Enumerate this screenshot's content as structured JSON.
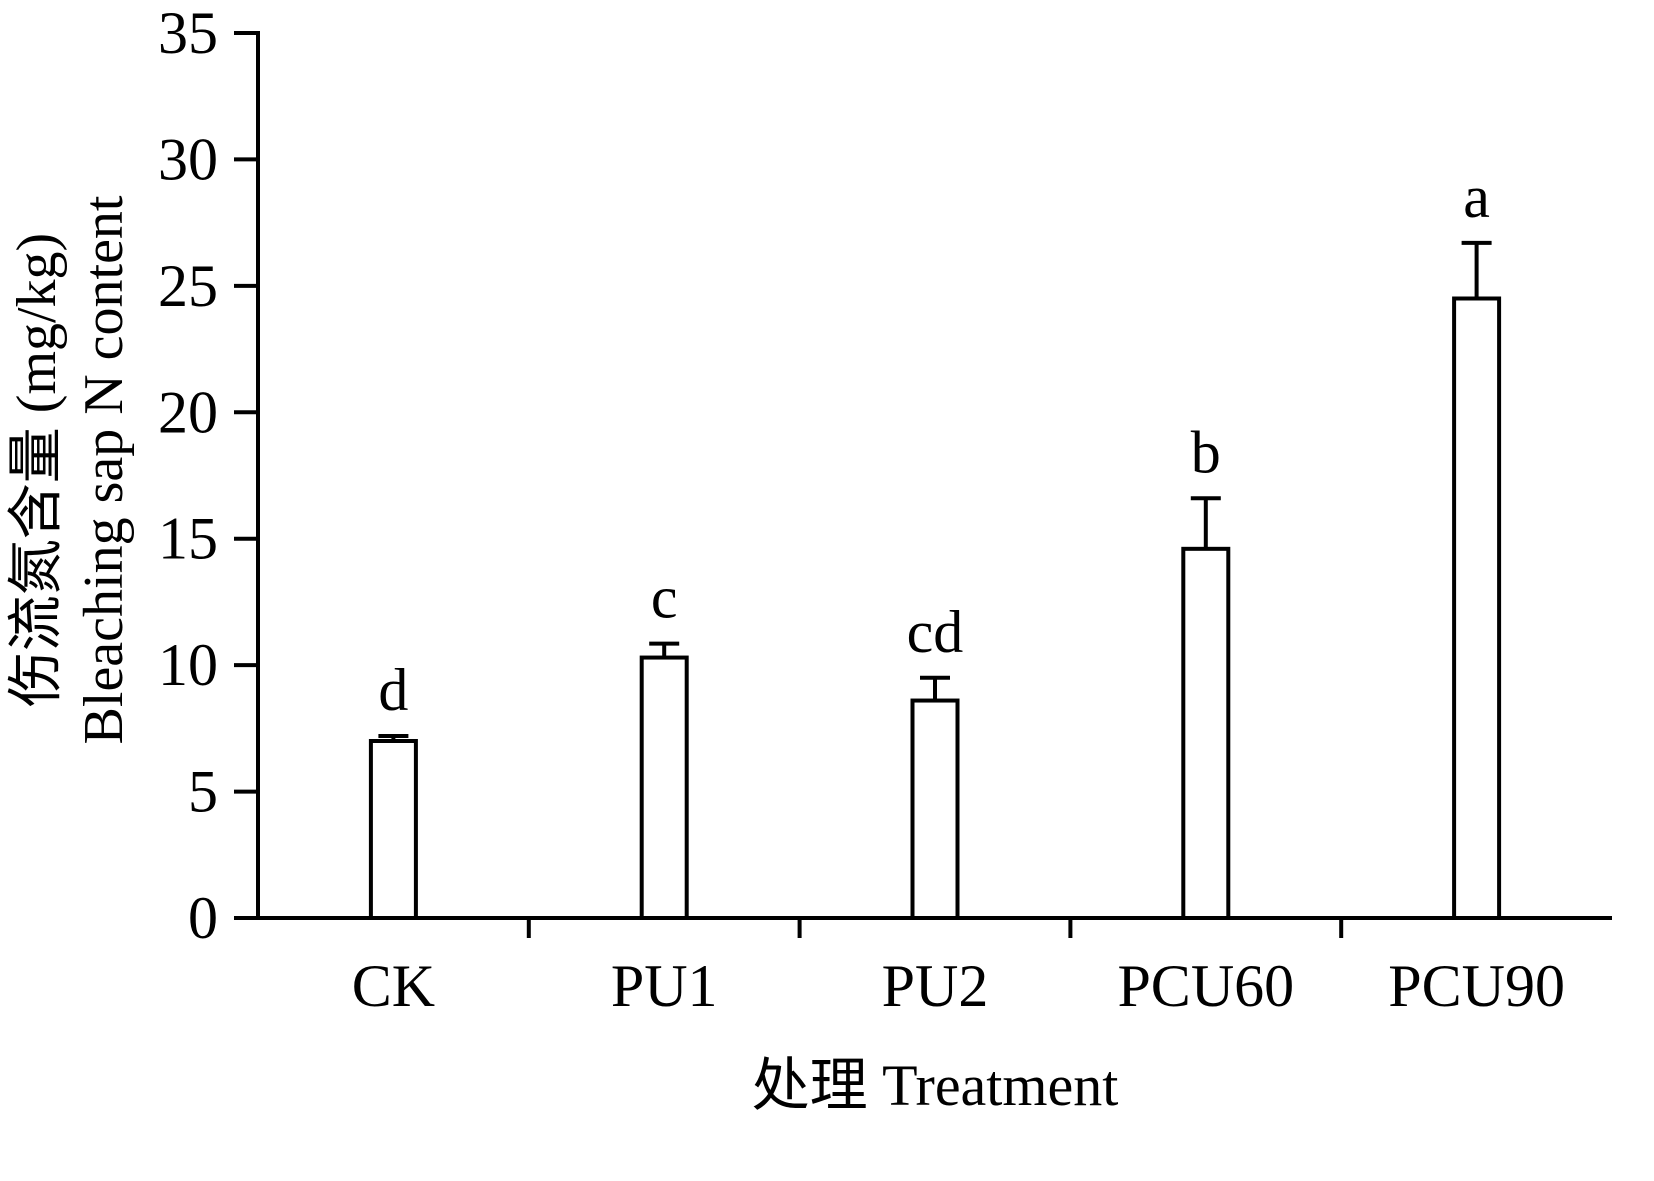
{
  "chart_data": {
    "type": "bar",
    "categories": [
      "CK",
      "PU1",
      "PU2",
      "PCU60",
      "PCU90"
    ],
    "values": [
      7.0,
      10.3,
      8.6,
      14.6,
      24.5
    ],
    "errors_upper": [
      0.2,
      0.55,
      0.9,
      2.0,
      2.2
    ],
    "sig_letters": [
      "d",
      "c",
      "cd",
      "b",
      "a"
    ],
    "title": "",
    "xlabel": "处理 Treatment",
    "ylabel_cn": "伤流氮含量 (mg/kg)",
    "ylabel_en": "Bleaching sap N content",
    "ylim": [
      0,
      35
    ],
    "ytick_step": 5,
    "grid": "off",
    "legend": "none",
    "bar_fill": "#ffffff",
    "bar_border": "#000000",
    "axis_color": "#000000"
  }
}
